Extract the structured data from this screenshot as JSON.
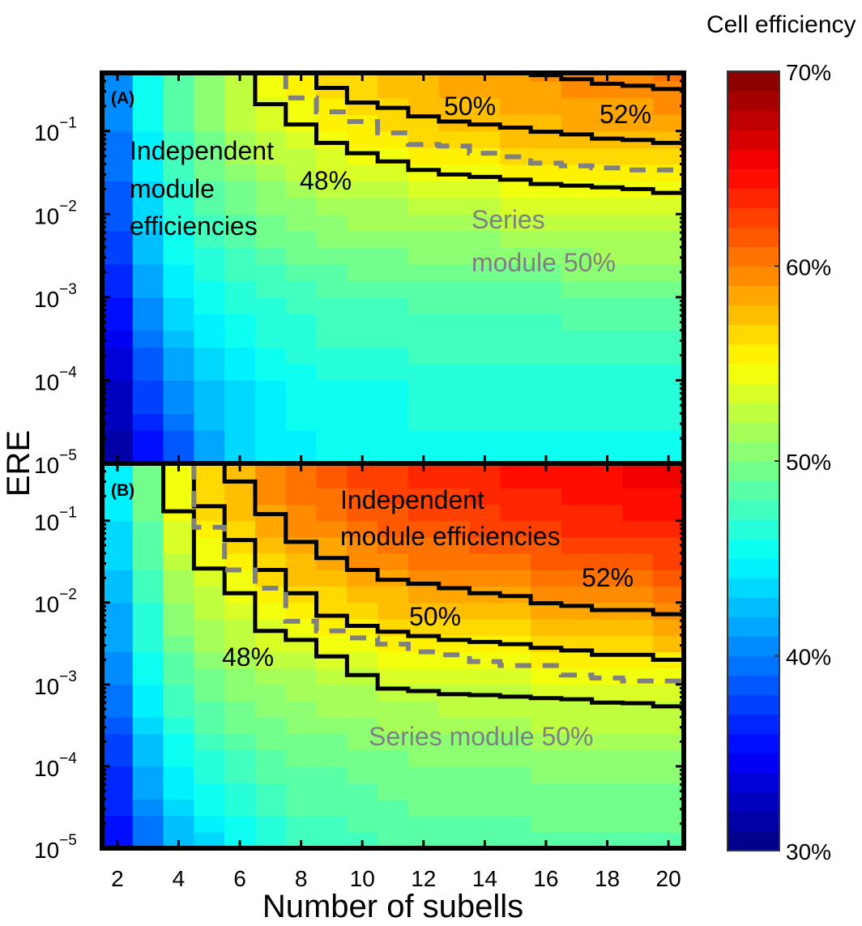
{
  "chart_data": {
    "type": "heatmap",
    "xlabel": "Number of subells",
    "ylabel": "ERE",
    "x": {
      "range": [
        1.5,
        20.5
      ],
      "ticks": [
        2,
        4,
        6,
        8,
        10,
        12,
        14,
        16,
        18,
        20
      ],
      "tick_labels": [
        "2",
        "4",
        "6",
        "8",
        "10",
        "12",
        "14",
        "16",
        "18",
        "20"
      ]
    },
    "y": {
      "scale": "log",
      "range": [
        1e-05,
        0.5
      ],
      "ticks": [
        1e-05,
        0.0001,
        0.001,
        0.01,
        0.1
      ],
      "tick_labels": [
        {
          "base": "10",
          "exp": "−5"
        },
        {
          "base": "10",
          "exp": "−4"
        },
        {
          "base": "10",
          "exp": "−3"
        },
        {
          "base": "10",
          "exp": "−2"
        },
        {
          "base": "10",
          "exp": "−1"
        }
      ]
    },
    "colorbar": {
      "label": "Cell efficiency",
      "colormap": "jet",
      "levels": 40,
      "range": [
        30,
        70
      ],
      "ticks": [
        30,
        40,
        50,
        60,
        70
      ],
      "tick_labels": [
        "30%",
        "40%",
        "50%",
        "60%",
        "70%"
      ]
    },
    "contour_style": {
      "module_line_color": "#000000",
      "series_line_color": "#808080"
    },
    "panels": [
      {
        "label": "(A)",
        "subcells": [
          2,
          3,
          4,
          5,
          6,
          7,
          8,
          9,
          10,
          11,
          12,
          13,
          14,
          15,
          16,
          17,
          18,
          19,
          20
        ],
        "ere_levels": [
          1e-05,
          0.0001,
          0.001,
          0.01,
          0.1,
          0.5
        ],
        "efficiency_percent": [
          [
            31,
            35,
            38,
            41,
            43,
            44,
            44.5,
            45,
            45,
            45.5,
            45.5,
            45.5,
            45.5,
            45.5,
            45.5,
            45.5,
            45.5,
            45.5,
            45.5
          ],
          [
            33,
            38,
            41,
            43,
            44,
            45,
            45.5,
            46,
            46,
            46,
            46.5,
            46.5,
            46.5,
            46.5,
            46.5,
            46.5,
            46.5,
            46.5,
            46.5
          ],
          [
            36,
            41,
            44,
            45.5,
            46.5,
            47,
            47.5,
            48,
            48,
            48,
            48.5,
            48.5,
            48.5,
            48.5,
            48.5,
            49,
            49,
            49,
            49
          ],
          [
            38.5,
            43.5,
            46.5,
            48,
            49,
            50,
            50.5,
            51,
            51.5,
            51.5,
            52,
            52,
            52,
            52.5,
            52.5,
            52.5,
            53,
            53,
            53
          ],
          [
            40,
            45,
            48,
            50,
            52,
            53,
            54,
            55,
            55.5,
            56,
            56.5,
            57,
            57,
            57.5,
            57.5,
            58,
            58,
            58,
            58.5
          ],
          [
            41,
            46,
            49,
            51,
            53,
            54.5,
            55.5,
            56.5,
            57,
            57.5,
            58,
            58.5,
            59,
            59,
            59.5,
            59.5,
            60,
            60,
            60.5
          ]
        ],
        "contours": [
          {
            "label": "48%",
            "style": "solid",
            "subcells": [
              7,
              8,
              9,
              10,
              11,
              12,
              13,
              14,
              15,
              16,
              17,
              18,
              19,
              20
            ],
            "ere": [
              0.21,
              0.12,
              0.072,
              0.054,
              0.043,
              0.034,
              0.03,
              0.028,
              0.026,
              0.023,
              0.022,
              0.021,
              0.02,
              0.018
            ]
          },
          {
            "label": "50%",
            "style": "solid",
            "subcells": [
              9,
              10,
              11,
              12,
              13,
              14,
              15,
              16,
              17,
              18,
              19,
              20
            ],
            "ere": [
              0.33,
              0.22,
              0.19,
              0.15,
              0.13,
              0.12,
              0.11,
              0.098,
              0.091,
              0.081,
              0.078,
              0.072
            ]
          },
          {
            "label": "52%",
            "style": "solid",
            "subcells": [
              16,
              17,
              18,
              19,
              20
            ],
            "ere": [
              0.47,
              0.42,
              0.37,
              0.35,
              0.32
            ]
          },
          {
            "label": "Series module 50%",
            "style": "dashed",
            "subcells": [
              8,
              9,
              10,
              11,
              12,
              13,
              14,
              15,
              16,
              17,
              18,
              19,
              20
            ],
            "ere": [
              0.25,
              0.17,
              0.13,
              0.095,
              0.069,
              0.066,
              0.054,
              0.049,
              0.041,
              0.038,
              0.036,
              0.034,
              0.034
            ]
          }
        ],
        "annotations": {
          "independent": [
            "Independent",
            "module",
            "efficiencies"
          ],
          "c48": "48%",
          "c50": "50%",
          "c52": "52%",
          "series": [
            "Series",
            "module 50%"
          ]
        }
      },
      {
        "label": "(B)",
        "subcells": [
          2,
          3,
          4,
          5,
          6,
          7,
          8,
          9,
          10,
          11,
          12,
          13,
          14,
          15,
          16,
          17,
          18,
          19,
          20
        ],
        "ere_levels": [
          1e-05,
          0.0001,
          0.001,
          0.01,
          0.1,
          0.5
        ],
        "efficiency_percent": [
          [
            35,
            39,
            42,
            43.5,
            45,
            46,
            47,
            47.5,
            47.5,
            48,
            48,
            48,
            48,
            48,
            48.5,
            48.5,
            48.5,
            48.5,
            48.5
          ],
          [
            37,
            42,
            45,
            46.5,
            47.5,
            48.5,
            49,
            49,
            49.5,
            49.5,
            50,
            50,
            50,
            50,
            50.5,
            50.5,
            50.5,
            50.5,
            50.5
          ],
          [
            40,
            45,
            48,
            49.5,
            50.5,
            51,
            51.5,
            52,
            52,
            52.5,
            52.5,
            53,
            53,
            53,
            53.5,
            53.5,
            53.5,
            53.5,
            54
          ],
          [
            42,
            47,
            51,
            52.5,
            54,
            55,
            56,
            56.5,
            57,
            57.5,
            58,
            58,
            58.5,
            58.5,
            59,
            59,
            59.5,
            59.5,
            60
          ],
          [
            44,
            49,
            54,
            56,
            57,
            58.5,
            59.5,
            60,
            61,
            61.5,
            62,
            62,
            62.5,
            63,
            63,
            63.5,
            63.5,
            64,
            64
          ],
          [
            45,
            50,
            55,
            57,
            58,
            60,
            61,
            62,
            62.5,
            63,
            63.5,
            64,
            64,
            64.5,
            64.5,
            65,
            65,
            65.5,
            65.5
          ]
        ],
        "contours": [
          {
            "label": "48%",
            "style": "solid",
            "subcells": [
              4,
              5,
              6,
              7,
              8,
              9,
              10,
              11,
              12,
              13,
              14,
              15,
              16,
              17,
              18,
              19,
              20
            ],
            "ere": [
              0.13,
              0.026,
              0.013,
              0.0045,
              0.0035,
              0.0022,
              0.0013,
              0.00089,
              0.00083,
              0.00076,
              0.00074,
              0.00071,
              0.00068,
              0.00066,
              0.0006,
              0.00059,
              0.00054
            ]
          },
          {
            "label": "50%",
            "style": "solid",
            "subcells": [
              5,
              6,
              7,
              8,
              9,
              10,
              11,
              12,
              13,
              14,
              15,
              16,
              17,
              18,
              19,
              20
            ],
            "ere": [
              0.15,
              0.058,
              0.025,
              0.013,
              0.0069,
              0.0052,
              0.0044,
              0.0039,
              0.0035,
              0.0033,
              0.0031,
              0.0028,
              0.0026,
              0.0023,
              0.0023,
              0.002
            ]
          },
          {
            "label": "52%",
            "style": "solid",
            "subcells": [
              6,
              7,
              8,
              9,
              10,
              11,
              12,
              13,
              14,
              15,
              16,
              17,
              18,
              19,
              20
            ],
            "ere": [
              0.3,
              0.12,
              0.055,
              0.035,
              0.025,
              0.019,
              0.017,
              0.015,
              0.013,
              0.012,
              0.0098,
              0.0091,
              0.0081,
              0.0081,
              0.0072
            ]
          },
          {
            "label": "Series module 50%",
            "style": "dashed",
            "subcells": [
              5,
              6,
              7,
              8,
              9,
              10,
              11,
              12,
              13,
              14,
              15,
              16,
              17,
              18,
              19,
              20
            ],
            "ere": [
              0.083,
              0.025,
              0.015,
              0.0059,
              0.0045,
              0.0037,
              0.0031,
              0.0025,
              0.0023,
              0.0019,
              0.0017,
              0.0017,
              0.0013,
              0.0012,
              0.0011,
              0.0011
            ]
          }
        ],
        "annotations": {
          "independent": [
            "Independent",
            "module efficiencies"
          ],
          "c48": "48%",
          "c50": "50%",
          "c52": "52%",
          "series": [
            "Series module 50%"
          ]
        }
      }
    ]
  }
}
